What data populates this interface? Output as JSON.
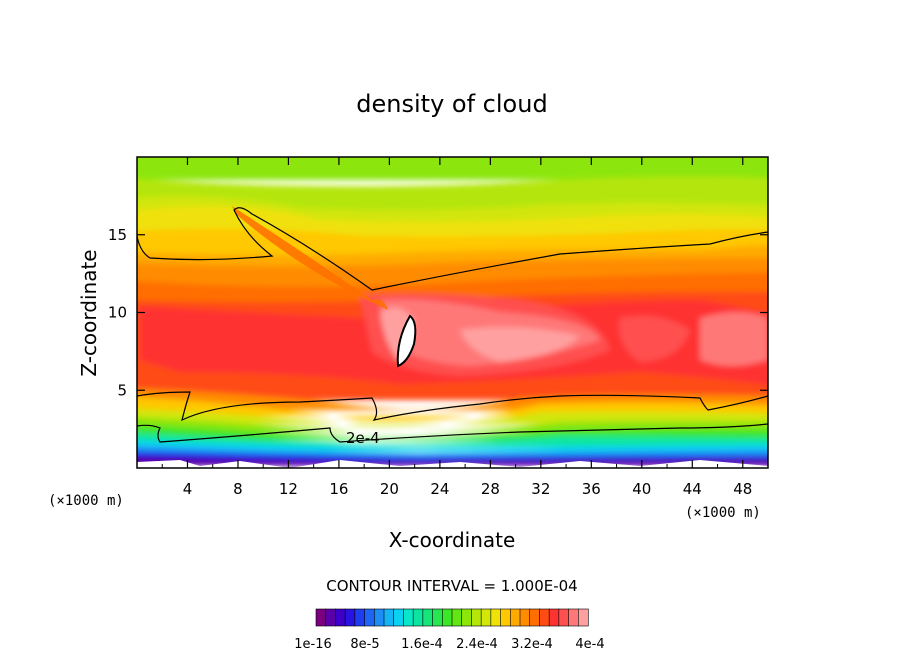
{
  "chart_data": {
    "type": "heatmap",
    "title": "density of cloud",
    "xlabel": "X-coordinate",
    "ylabel": "Z-coordinate",
    "x_unit": "(×1000 m)",
    "y_unit": "(×1000 m)",
    "xlim": [
      0,
      50
    ],
    "ylim": [
      0,
      20
    ],
    "x_ticks": [
      4,
      8,
      12,
      16,
      20,
      24,
      28,
      32,
      36,
      40,
      44,
      48
    ],
    "y_ticks": [
      5,
      10,
      15
    ],
    "contour_interval_text": "CONTOUR INTERVAL = 1.000E-04",
    "contour_label": "2e-4",
    "colorbar": {
      "colors": [
        "#7a0080",
        "#5a00a6",
        "#3c00c8",
        "#2814e0",
        "#1e3cf0",
        "#1e64f5",
        "#1e8cf5",
        "#14b4f5",
        "#0ad2f0",
        "#0ae6c8",
        "#0ae6a0",
        "#14e678",
        "#28e650",
        "#3ce628",
        "#64e614",
        "#8ce60a",
        "#b4e60a",
        "#d2e60a",
        "#f0e10a",
        "#ffc800",
        "#ffaa00",
        "#ff8c00",
        "#ff6e00",
        "#ff4b14",
        "#ff3232",
        "#ff5050",
        "#ff7878",
        "#ffa0a0"
      ],
      "labels": [
        "1e-16",
        "8e-5",
        "1.6e-4",
        "2.4e-4",
        "3.2e-4",
        "4e-4"
      ]
    }
  }
}
